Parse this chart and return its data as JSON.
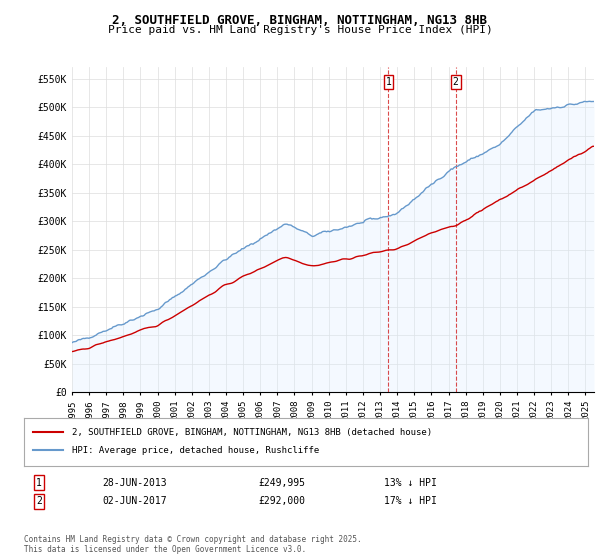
{
  "title": "2, SOUTHFIELD GROVE, BINGHAM, NOTTINGHAM, NG13 8HB",
  "subtitle": "Price paid vs. HM Land Registry's House Price Index (HPI)",
  "ylabel_ticks": [
    "£0",
    "£50K",
    "£100K",
    "£150K",
    "£200K",
    "£250K",
    "£300K",
    "£350K",
    "£400K",
    "£450K",
    "£500K",
    "£550K"
  ],
  "ytick_values": [
    0,
    50000,
    100000,
    150000,
    200000,
    250000,
    300000,
    350000,
    400000,
    450000,
    500000,
    550000
  ],
  "ylim": [
    0,
    570000
  ],
  "xlim_start": 1995.0,
  "xlim_end": 2025.5,
  "transaction1": {
    "year": 2013.49,
    "price": 249995,
    "label": "1",
    "date": "28-JUN-2013",
    "pct": "13% ↓ HPI"
  },
  "transaction2": {
    "year": 2017.42,
    "price": 292000,
    "label": "2",
    "date": "02-JUN-2017",
    "pct": "17% ↓ HPI"
  },
  "legend_property": "2, SOUTHFIELD GROVE, BINGHAM, NOTTINGHAM, NG13 8HB (detached house)",
  "legend_hpi": "HPI: Average price, detached house, Rushcliffe",
  "footer": "Contains HM Land Registry data © Crown copyright and database right 2025.\nThis data is licensed under the Open Government Licence v3.0.",
  "line_color_property": "#cc0000",
  "line_color_hpi": "#6699cc",
  "hpi_fill_color": "#ddeeff",
  "vline_color": "#cc0000",
  "marker_box_color": "#cc0000",
  "background_color": "#ffffff",
  "grid_color": "#dddddd"
}
